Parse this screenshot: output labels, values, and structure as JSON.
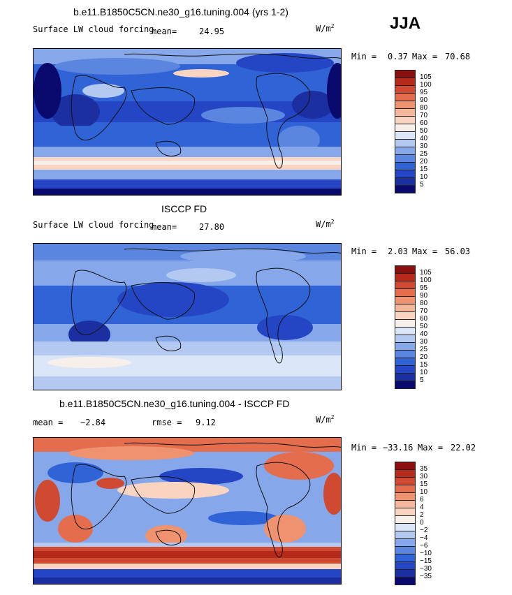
{
  "season": "JJA",
  "palette_top": [
    "#0a0a6e",
    "#1c2fa0",
    "#2446c4",
    "#3063d6",
    "#5a86e0",
    "#86a8ea",
    "#b3c9f2",
    "#dbe6f8",
    "#f7efe9",
    "#f9d4c1",
    "#f5b79c",
    "#ef9270",
    "#e36d4c",
    "#cf4a30",
    "#b52a1a",
    "#8a1010"
  ],
  "palette_diff": [
    "#0a0a6e",
    "#1c2fa0",
    "#2446c4",
    "#3063d6",
    "#5a86e0",
    "#86a8ea",
    "#b3c9f2",
    "#dbe6f8",
    "#f7efe9",
    "#f9d4c1",
    "#f5b79c",
    "#ef9270",
    "#e36d4c",
    "#cf4a30",
    "#b52a1a",
    "#8a1010"
  ],
  "panels": [
    {
      "title": "b.e11.B1850C5CN.ne30_g16.tuning.004 (yrs 1-2)",
      "left_label": "Surface LW cloud forcing",
      "mean_label": "mean=",
      "mean_value": "24.95",
      "units": "W/m",
      "units_sup": "2",
      "min_label": "Min =",
      "min_value": "0.37",
      "max_label": "Max =",
      "max_value": "70.68",
      "colorbar_labels": [
        "105",
        "100",
        "95",
        "90",
        "80",
        "70",
        "60",
        "50",
        "40",
        "30",
        "25",
        "20",
        "15",
        "10",
        "5"
      ]
    },
    {
      "title": "ISCCP FD",
      "left_label": "Surface LW cloud forcing",
      "mean_label": "mean=",
      "mean_value": "27.80",
      "units": "W/m",
      "units_sup": "2",
      "min_label": "Min =",
      "min_value": "2.03",
      "max_label": "Max =",
      "max_value": "56.03",
      "colorbar_labels": [
        "105",
        "100",
        "95",
        "90",
        "80",
        "70",
        "60",
        "50",
        "40",
        "30",
        "25",
        "20",
        "15",
        "10",
        "5"
      ]
    },
    {
      "title": "b.e11.B1850C5CN.ne30_g16.tuning.004 - ISCCP FD",
      "left_label": "mean =",
      "mean_label": "",
      "mean_value": "−2.84",
      "rmse_label": "rmse =",
      "rmse_value": "9.12",
      "units": "W/m",
      "units_sup": "2",
      "min_label": "Min =",
      "min_value": "−33.16",
      "max_label": "Max =",
      "max_value": "22.02",
      "colorbar_labels": [
        "35",
        "30",
        "15",
        "10",
        "6",
        "4",
        "2",
        "0",
        "−2",
        "−4",
        "−6",
        "−10",
        "−15",
        "−30",
        "−35"
      ]
    }
  ],
  "chart_data": [
    {
      "type": "heatmap",
      "title": "b.e11.B1850C5CN.ne30_g16.tuning.004 (yrs 1-2)",
      "variable": "Surface LW cloud forcing",
      "units": "W/m2",
      "mean": 24.95,
      "min": 0.37,
      "max": 70.68,
      "levels": [
        5,
        10,
        15,
        20,
        25,
        30,
        40,
        50,
        60,
        70,
        80,
        90,
        95,
        100,
        105
      ]
    },
    {
      "type": "heatmap",
      "title": "ISCCP FD",
      "variable": "Surface LW cloud forcing",
      "units": "W/m2",
      "mean": 27.8,
      "min": 2.03,
      "max": 56.03,
      "levels": [
        5,
        10,
        15,
        20,
        25,
        30,
        40,
        50,
        60,
        70,
        80,
        90,
        95,
        100,
        105
      ]
    },
    {
      "type": "heatmap",
      "title": "b.e11.B1850C5CN.ne30_g16.tuning.004 - ISCCP FD",
      "units": "W/m2",
      "mean": -2.84,
      "rmse": 9.12,
      "min": -33.16,
      "max": 22.02,
      "levels": [
        -35,
        -30,
        -15,
        -10,
        -6,
        -4,
        -2,
        0,
        2,
        4,
        6,
        10,
        15,
        30,
        35
      ]
    }
  ]
}
